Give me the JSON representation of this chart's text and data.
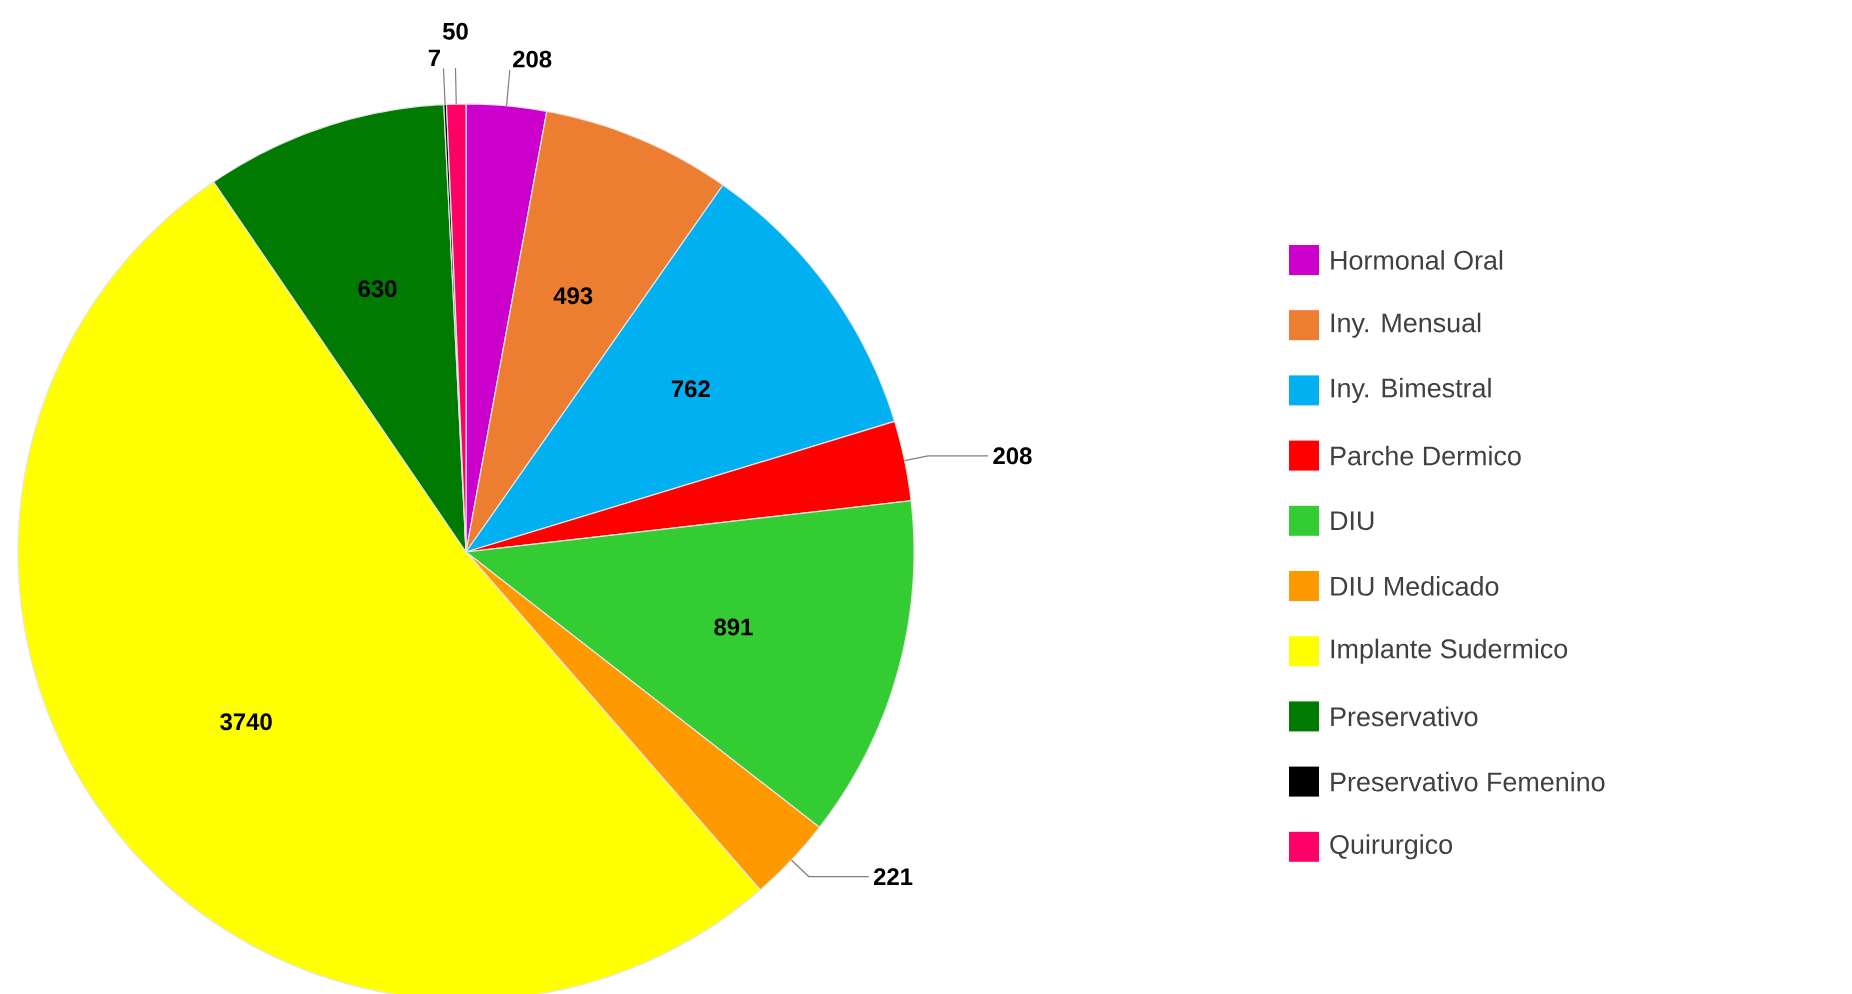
{
  "chart_data": {
    "type": "pie",
    "categories": [
      "Hormonal Oral",
      "Iny. Mensual",
      "Iny. Bimestral",
      "Parche Dermico",
      "DIU",
      "DIU Medicado",
      "Implante Sudermico",
      "Preservativo",
      "Preservativo Femenino",
      "Quirurgico"
    ],
    "values": [
      208,
      493,
      762,
      208,
      891,
      221,
      3740,
      630,
      7,
      50
    ],
    "colors": [
      "#cc00cc",
      "#ed7d31",
      "#00b0f0",
      "#ff0000",
      "#33cc33",
      "#ff9900",
      "#ffff00",
      "#007a00",
      "#000000",
      "#ff0066"
    ],
    "data_labels": true,
    "legend": "right"
  }
}
